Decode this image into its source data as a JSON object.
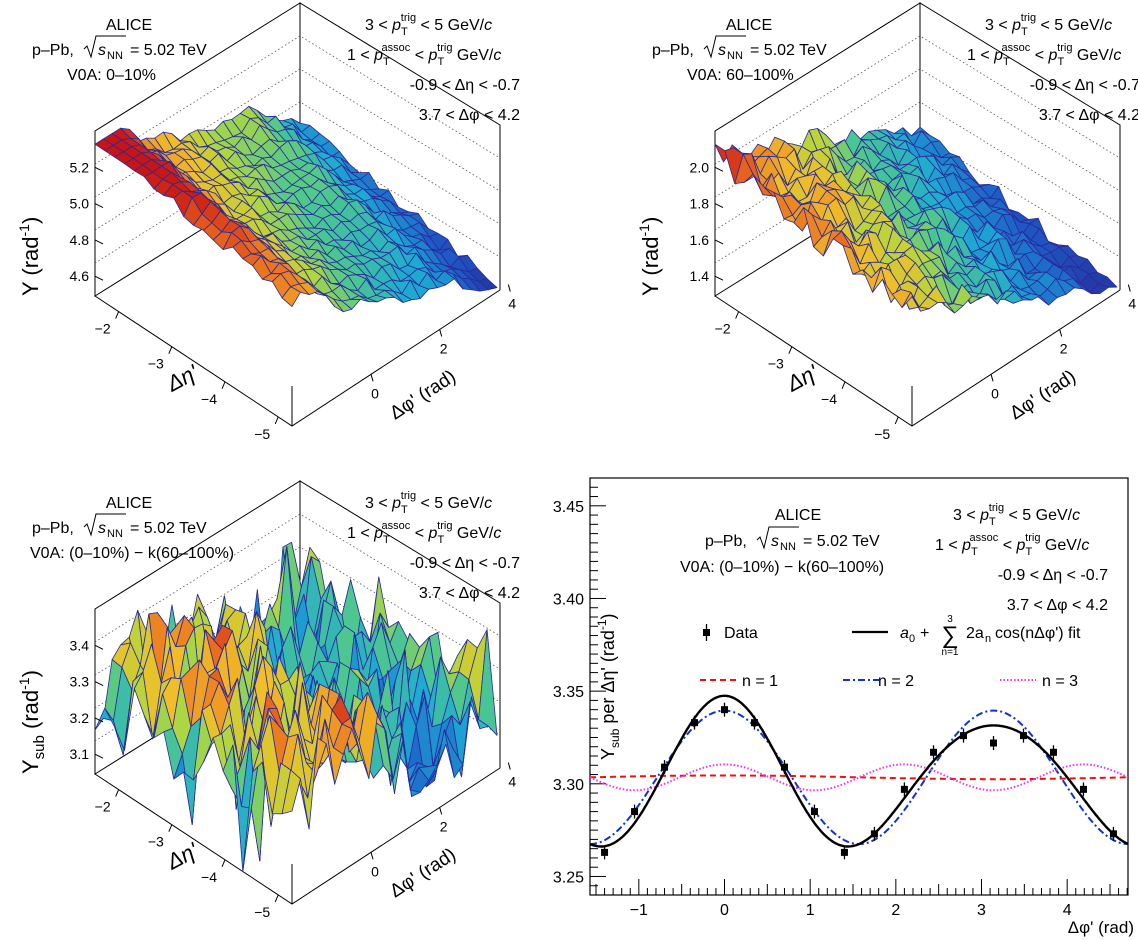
{
  "panels": [
    {
      "experiment": "ALICE",
      "system_prefix": "p–Pb,",
      "sqrt_label": "s",
      "sqrt_sub": "NN",
      "energy": "= 5.02 TeV",
      "centrality": "V0A: 0–10%",
      "cut_lines": {
        "trig_pre": "3 <",
        "p": "p",
        "T": "T",
        "trig": "trig",
        "trig_post": "< 5 GeV/",
        "c": "c",
        "assoc_pre": "1 <",
        "assoc": "assoc",
        "lt": "<",
        "assoc_post": "GeV/",
        "deta": "-0.9 < Δη < -0.7",
        "dphi": "3.7 < Δφ < 4.2"
      },
      "zlabel": "Y (rad",
      "zlabel_sup": "-1",
      "zlabel_close": ")",
      "z_ticks": [
        "4.6",
        "4.8",
        "5.0",
        "5.2"
      ],
      "eta_label": "Δη'",
      "eta_ticks": [
        "−2",
        "−3",
        "−4",
        "−5"
      ],
      "phi_label": "Δφ' (rad)",
      "phi_ticks": [
        "0",
        "2",
        "4"
      ]
    },
    {
      "experiment": "ALICE",
      "system_prefix": "p–Pb,",
      "sqrt_label": "s",
      "sqrt_sub": "NN",
      "energy": "= 5.02 TeV",
      "centrality": "V0A: 60–100%",
      "zlabel": "Y (rad",
      "zlabel_sup": "-1",
      "zlabel_close": ")",
      "z_ticks": [
        "1.4",
        "1.6",
        "1.8",
        "2.0"
      ],
      "eta_label": "Δη'",
      "eta_ticks": [
        "−2",
        "−3",
        "−4",
        "−5"
      ],
      "phi_label": "Δφ' (rad)",
      "phi_ticks": [
        "0",
        "2",
        "4"
      ]
    },
    {
      "experiment": "ALICE",
      "system_prefix": "p–Pb,",
      "sqrt_label": "s",
      "sqrt_sub": "NN",
      "energy": "= 5.02 TeV",
      "centrality": "V0A: (0–10%) − k(60–100%)",
      "zlabel": "Y",
      "zlabel_sub": "sub",
      "zlabel_rest": " (rad",
      "zlabel_sup": "-1",
      "zlabel_close": ")",
      "z_ticks": [
        "3.1",
        "3.2",
        "3.3",
        "3.4"
      ],
      "eta_label": "Δη'",
      "eta_ticks": [
        "−2",
        "−3",
        "−4",
        "−5"
      ],
      "phi_label": "Δφ' (rad)",
      "phi_ticks": [
        "0",
        "2",
        "4"
      ]
    }
  ],
  "chart_data": [
    {
      "type": "heatmap",
      "surface": "lego/surface plot",
      "x_label": "Δφ' (rad)",
      "y_label": "Δη'",
      "z_label": "Y (rad-1)",
      "z_range": [
        4.55,
        5.3
      ],
      "x_range": [
        -1.5,
        4.7
      ],
      "y_range": [
        -1.6,
        -5.6
      ]
    },
    {
      "type": "heatmap",
      "surface": "lego/surface plot",
      "x_label": "Δφ' (rad)",
      "y_label": "Δη'",
      "z_label": "Y (rad-1)",
      "z_range": [
        1.3,
        2.1
      ],
      "x_range": [
        -1.5,
        4.7
      ],
      "y_range": [
        -1.6,
        -5.6
      ]
    },
    {
      "type": "heatmap",
      "surface": "lego/surface plot",
      "x_label": "Δφ' (rad)",
      "y_label": "Δη'",
      "z_label": "Ysub (rad-1)",
      "z_range": [
        3.05,
        3.45
      ],
      "x_range": [
        -1.5,
        4.7
      ],
      "y_range": [
        -1.6,
        -5.6
      ]
    },
    {
      "type": "line",
      "xlabel": "Δφ' (rad)",
      "ylabel": "Ysub per Δη' (rad-1)",
      "xlim": [
        -1.57,
        4.71
      ],
      "ylim": [
        3.24,
        3.465
      ],
      "x_ticks": [
        "−1",
        "0",
        "1",
        "2",
        "3",
        "4"
      ],
      "y_ticks": [
        "3.25",
        "3.30",
        "3.35",
        "3.40",
        "3.45"
      ],
      "fit": {
        "a0": 3.3035,
        "a1": 0.0005,
        "a2": 0.036,
        "a3": 0.0035
      },
      "data_x": [
        -1.4,
        -1.05,
        -0.7,
        -0.35,
        0.0,
        0.35,
        0.7,
        1.05,
        1.4,
        1.75,
        2.1,
        2.44,
        2.79,
        3.14,
        3.49,
        3.84,
        4.19,
        4.54
      ],
      "data_y": [
        3.263,
        3.285,
        3.309,
        3.333,
        3.34,
        3.333,
        3.309,
        3.285,
        3.263,
        3.273,
        3.297,
        3.317,
        3.326,
        3.322,
        3.326,
        3.317,
        3.297,
        3.273
      ],
      "series": [
        {
          "name": "Data",
          "style": "markers",
          "color": "#000000"
        },
        {
          "name": "fit",
          "color": "#000000"
        },
        {
          "name": "n = 1",
          "color": "#ee1111"
        },
        {
          "name": "n = 2",
          "color": "#1133cc"
        },
        {
          "name": "n = 3",
          "color": "#ee33ee"
        }
      ]
    }
  ],
  "legend": {
    "data": "Data",
    "fit_a0": "a",
    "fit_a0_sub": "0",
    "fit_plus": "+",
    "fit_sum_top": "3",
    "fit_sum_bottom": "n=1",
    "fit_term": "2a",
    "fit_term_sub": "n",
    "fit_cos": "cos(nΔφ') fit",
    "n1": "n = 1",
    "n2": "n = 2",
    "n3": "n = 3"
  },
  "plot4": {
    "experiment": "ALICE",
    "system_prefix": "p–Pb,",
    "energy": "= 5.02 TeV",
    "centrality": "V0A: (0–10%) − k(60–100%)",
    "ylabel_main": "Y",
    "ylabel_sub": "sub",
    "ylabel_rest": " per Δη' (rad",
    "ylabel_sup": "-1",
    "ylabel_close": ")",
    "xlabel": "Δφ' (rad)"
  }
}
